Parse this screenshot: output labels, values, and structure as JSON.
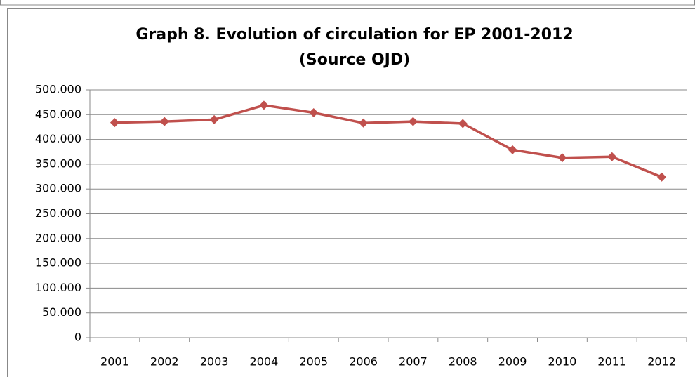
{
  "chart_data": {
    "type": "line",
    "title": "Graph 8. Evolution of circulation for EP 2001-2012",
    "subtitle": "(Source OJD)",
    "categories": [
      "2001",
      "2002",
      "2003",
      "2004",
      "2005",
      "2006",
      "2007",
      "2008",
      "2009",
      "2010",
      "2011",
      "2012"
    ],
    "series": [
      {
        "name": "EP",
        "color": "#c0504d",
        "values": [
          434000,
          436000,
          440000,
          469000,
          454000,
          433000,
          436000,
          432000,
          379000,
          363000,
          365000,
          324000
        ]
      }
    ],
    "ylim": [
      0,
      500000
    ],
    "yticks": [
      0,
      {
        "value": 50000,
        "label": "50.000"
      },
      {
        "value": 100000,
        "label": "100.000"
      },
      {
        "value": 150000,
        "label": "150.000"
      },
      {
        "value": 200000,
        "label": "200.000"
      },
      {
        "value": 250000,
        "label": "250.000"
      },
      {
        "value": 300000,
        "label": "300.000"
      },
      {
        "value": 350000,
        "label": "350.000"
      },
      {
        "value": 400000,
        "label": "400.000"
      },
      {
        "value": 450000,
        "label": "450.000"
      },
      {
        "value": 500000,
        "label": "500.000"
      }
    ],
    "grid": true
  }
}
